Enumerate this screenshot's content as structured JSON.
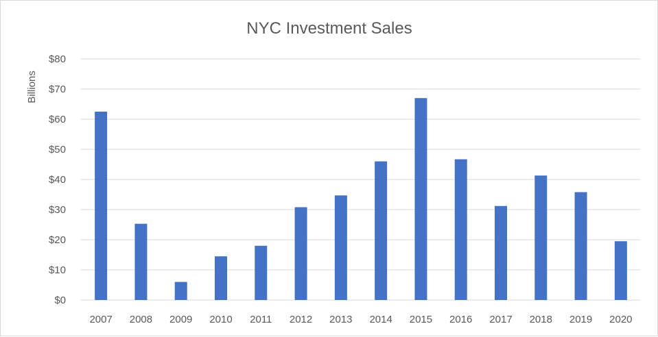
{
  "chart_data": {
    "type": "bar",
    "title": "NYC Investment Sales",
    "xlabel": "",
    "ylabel": "Billions",
    "categories": [
      "2007",
      "2008",
      "2009",
      "2010",
      "2011",
      "2012",
      "2013",
      "2014",
      "2015",
      "2016",
      "2017",
      "2018",
      "2019",
      "2020"
    ],
    "values": [
      62.5,
      25.3,
      6.0,
      14.5,
      18.0,
      30.8,
      34.7,
      46.0,
      67.0,
      46.7,
      31.2,
      41.3,
      35.8,
      19.5
    ],
    "ylim": [
      0,
      80
    ],
    "yticks": [
      0,
      10,
      20,
      30,
      40,
      50,
      60,
      70,
      80
    ],
    "ytick_labels": [
      "$0",
      "$10",
      "$20",
      "$30",
      "$40",
      "$50",
      "$60",
      "$70",
      "$80"
    ],
    "grid": true,
    "legend": "none",
    "bar_color": "#4472c4"
  }
}
